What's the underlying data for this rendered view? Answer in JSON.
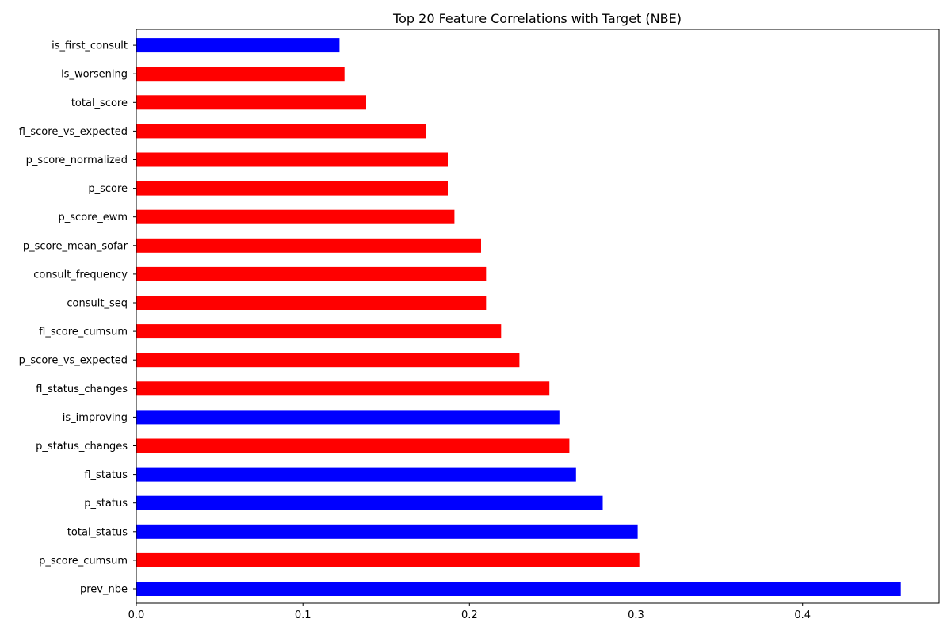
{
  "chart_data": {
    "type": "bar",
    "orientation": "horizontal",
    "title": "Top 20 Feature Correlations with Target (NBE)",
    "xlabel": "",
    "ylabel": "",
    "xlim": [
      0,
      0.482
    ],
    "xticks": [
      0.0,
      0.1,
      0.2,
      0.3,
      0.4
    ],
    "xtick_labels": [
      "0.0",
      "0.1",
      "0.2",
      "0.3",
      "0.4"
    ],
    "grid": false,
    "legend": "none",
    "colors": {
      "positive_sign": "#0000ff",
      "negative_sign": "#ff0000"
    },
    "bars": [
      {
        "category": "prev_nbe",
        "value": 0.459,
        "color": "#0000ff"
      },
      {
        "category": "p_score_cumsum",
        "value": 0.302,
        "color": "#ff0000"
      },
      {
        "category": "total_status",
        "value": 0.301,
        "color": "#0000ff"
      },
      {
        "category": "p_status",
        "value": 0.28,
        "color": "#0000ff"
      },
      {
        "category": "fl_status",
        "value": 0.264,
        "color": "#0000ff"
      },
      {
        "category": "p_status_changes",
        "value": 0.26,
        "color": "#ff0000"
      },
      {
        "category": "is_improving",
        "value": 0.254,
        "color": "#0000ff"
      },
      {
        "category": "fl_status_changes",
        "value": 0.248,
        "color": "#ff0000"
      },
      {
        "category": "p_score_vs_expected",
        "value": 0.23,
        "color": "#ff0000"
      },
      {
        "category": "fl_score_cumsum",
        "value": 0.219,
        "color": "#ff0000"
      },
      {
        "category": "consult_seq",
        "value": 0.21,
        "color": "#ff0000"
      },
      {
        "category": "consult_frequency",
        "value": 0.21,
        "color": "#ff0000"
      },
      {
        "category": "p_score_mean_sofar",
        "value": 0.207,
        "color": "#ff0000"
      },
      {
        "category": "p_score_ewm",
        "value": 0.191,
        "color": "#ff0000"
      },
      {
        "category": "p_score",
        "value": 0.187,
        "color": "#ff0000"
      },
      {
        "category": "p_score_normalized",
        "value": 0.187,
        "color": "#ff0000"
      },
      {
        "category": "fl_score_vs_expected",
        "value": 0.174,
        "color": "#ff0000"
      },
      {
        "category": "total_score",
        "value": 0.138,
        "color": "#ff0000"
      },
      {
        "category": "is_worsening",
        "value": 0.125,
        "color": "#ff0000"
      },
      {
        "category": "is_first_consult",
        "value": 0.122,
        "color": "#0000ff"
      }
    ]
  }
}
